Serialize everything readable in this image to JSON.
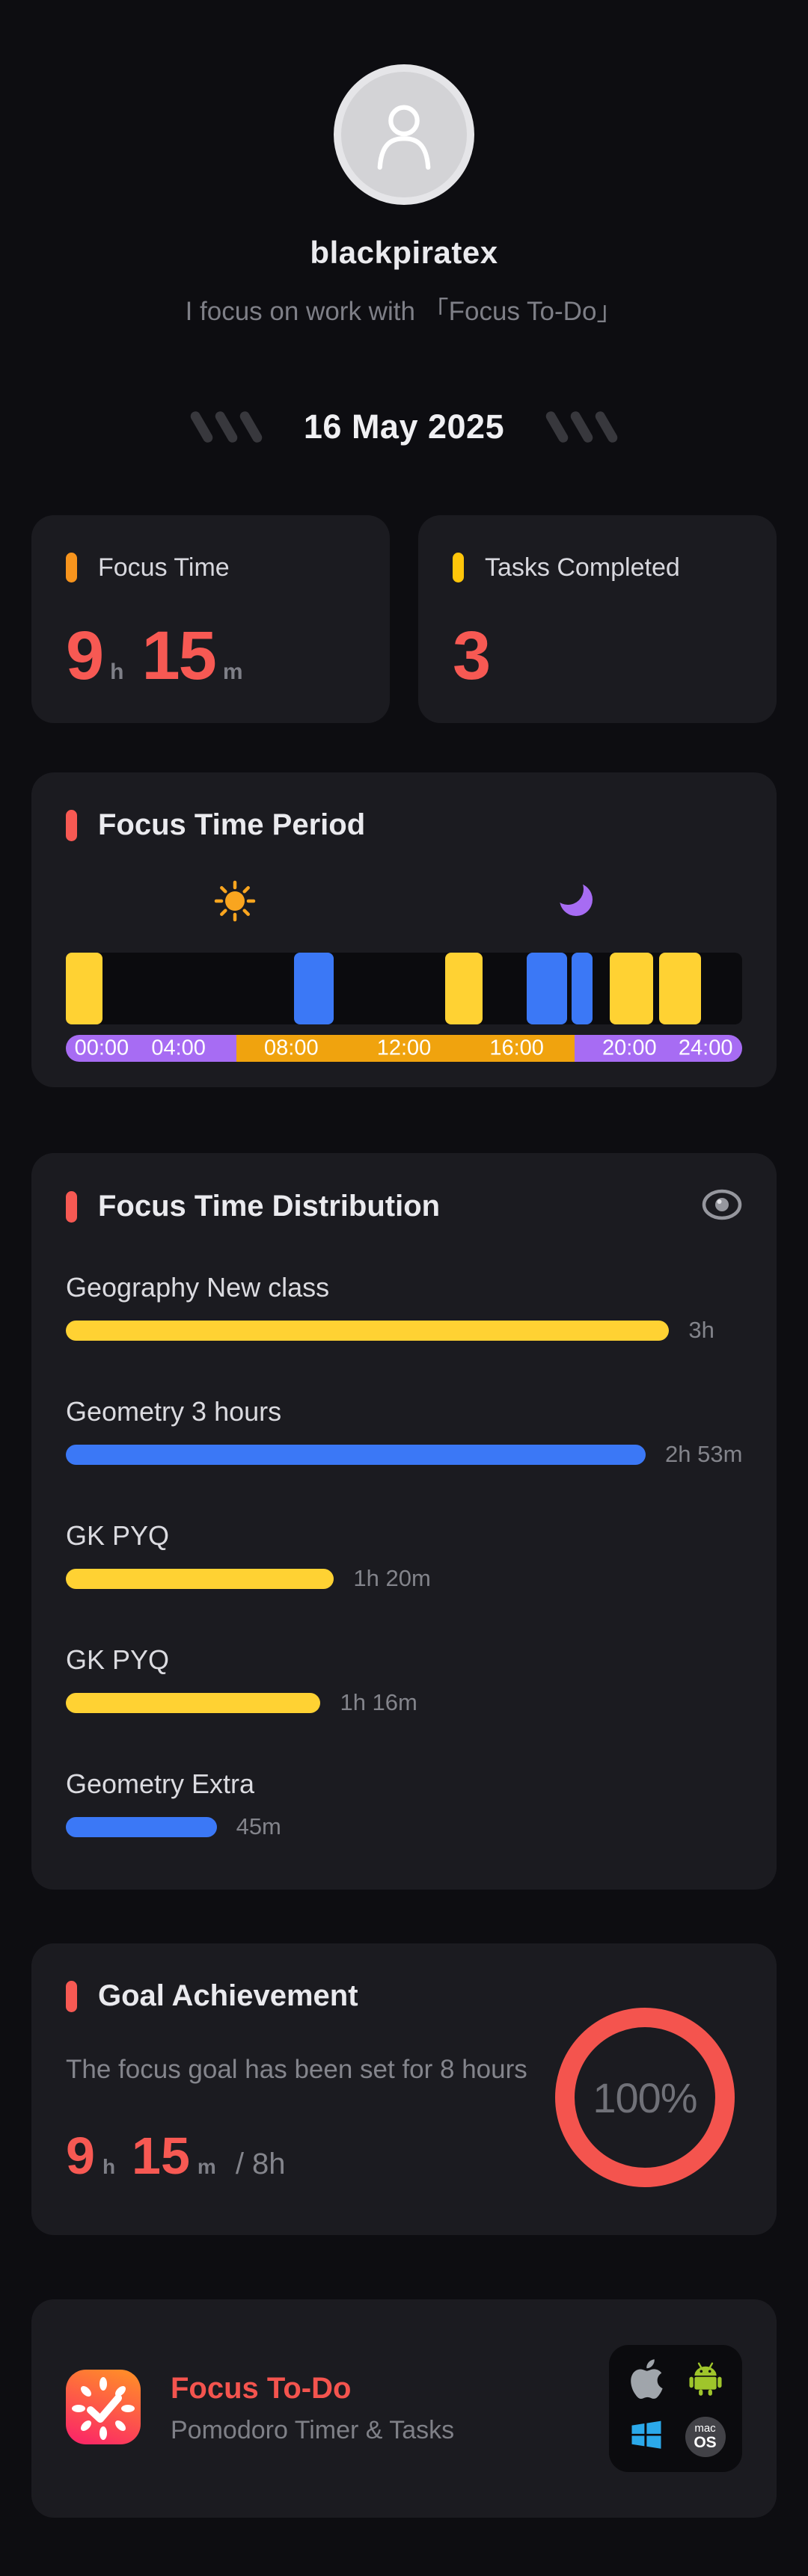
{
  "colors": {
    "page_bg": "#0D0D11",
    "card_bg": "#1B1B20",
    "red": "#F75953",
    "ring_red": "#F4544E",
    "orange": "#F7941D",
    "yellow": "#FFC60A",
    "bar_yellow": "#FFD233",
    "bar_blue": "#3B78F6",
    "purple": "#A76CF3",
    "amber": "#F0A30E",
    "gray_text": "#84858C"
  },
  "profile": {
    "username": "blackpiratex",
    "tagline": "I focus on work with 「Focus To-Do」",
    "avatar_icon": "person-icon"
  },
  "date_banner": {
    "date": "16 May 2025"
  },
  "stats": {
    "focus_time": {
      "title": "Focus Time",
      "hours": "9",
      "hours_unit": "h",
      "minutes": "15",
      "minutes_unit": "m"
    },
    "tasks_completed": {
      "title": "Tasks Completed",
      "count": "3"
    }
  },
  "period": {
    "title": "Focus Time Period",
    "sun_icon": "sun-icon",
    "moon_icon": "moon-icon",
    "hours_total": 24,
    "sunrise_hour": 6.05,
    "sunset_hour": 18.05,
    "sun_pos_hour": 6.0,
    "moon_pos_hour": 18.1,
    "bars": [
      {
        "start": 0.0,
        "end": 1.3,
        "color": "bar_yellow"
      },
      {
        "start": 8.1,
        "end": 9.5,
        "color": "bar_blue"
      },
      {
        "start": 13.45,
        "end": 14.8,
        "color": "bar_yellow"
      },
      {
        "start": 16.35,
        "end": 17.8,
        "color": "bar_blue"
      },
      {
        "start": 17.95,
        "end": 18.7,
        "color": "bar_blue"
      },
      {
        "start": 19.3,
        "end": 20.85,
        "color": "bar_yellow"
      },
      {
        "start": 21.05,
        "end": 22.55,
        "color": "bar_yellow"
      }
    ],
    "axis_labels": [
      {
        "text": "00:00",
        "hour": 0
      },
      {
        "text": "04:00",
        "hour": 4
      },
      {
        "text": "08:00",
        "hour": 8
      },
      {
        "text": "12:00",
        "hour": 12
      },
      {
        "text": "16:00",
        "hour": 16
      },
      {
        "text": "20:00",
        "hour": 20
      },
      {
        "text": "24:00",
        "hour": 24
      }
    ]
  },
  "distribution": {
    "title": "Focus Time Distribution",
    "eye_icon": "eye-icon",
    "max_minutes": 180,
    "rows": [
      {
        "label": "Geography New class",
        "value": "3h",
        "minutes": 180,
        "color": "bar_yellow"
      },
      {
        "label": "Geometry 3 hours",
        "value": "2h 53m",
        "minutes": 173,
        "color": "bar_blue"
      },
      {
        "label": "GK PYQ",
        "value": "1h 20m",
        "minutes": 80,
        "color": "bar_yellow"
      },
      {
        "label": "GK PYQ",
        "value": "1h 16m",
        "minutes": 76,
        "color": "bar_yellow"
      },
      {
        "label": "Geometry Extra",
        "value": "45m",
        "minutes": 45,
        "color": "bar_blue"
      }
    ]
  },
  "goal": {
    "title": "Goal Achievement",
    "description": "The focus goal has been set for 8 hours",
    "hours": "9",
    "hours_unit": "h",
    "minutes": "15",
    "minutes_unit": "m",
    "target": "/ 8h",
    "percent": "100%"
  },
  "footer": {
    "app_name": "Focus To-Do",
    "app_tagline": "Pomodoro Timer & Tasks",
    "app_icon": "focus-todo-app-icon",
    "platform_icons": [
      "apple-icon",
      "android-icon",
      "windows-icon",
      "macos-icon"
    ],
    "macos_badge": {
      "line1": "mac",
      "line2": "OS"
    }
  }
}
